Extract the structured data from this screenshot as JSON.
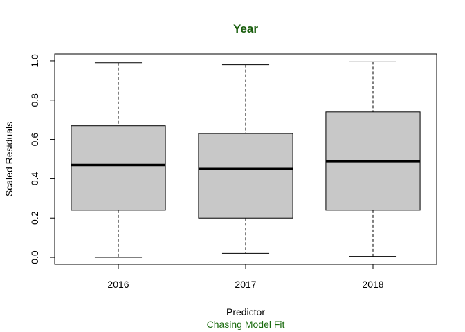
{
  "colors": {
    "title": "#1a5e0e",
    "subtitle": "#1a6b0e",
    "box_fill": "#c8c8c8",
    "stroke": "#000000"
  },
  "chart_data": {
    "type": "boxplot",
    "title": "Year",
    "xlabel": "Predictor",
    "ylabel": "Scaled Residuals",
    "subtitle": "Chasing Model Fit",
    "categories": [
      "2016",
      "2017",
      "2018"
    ],
    "boxes": [
      {
        "category": "2016",
        "min": 0.0,
        "q1": 0.24,
        "median": 0.47,
        "q3": 0.67,
        "max": 0.99
      },
      {
        "category": "2017",
        "min": 0.02,
        "q1": 0.2,
        "median": 0.45,
        "q3": 0.63,
        "max": 0.98
      },
      {
        "category": "2018",
        "min": 0.005,
        "q1": 0.24,
        "median": 0.49,
        "q3": 0.74,
        "max": 0.995
      }
    ],
    "ylim": [
      -0.035,
      1.035
    ],
    "yticks": [
      0.0,
      0.2,
      0.4,
      0.6,
      0.8,
      1.0
    ],
    "ytick_labels": [
      "0.0",
      "0.2",
      "0.4",
      "0.6",
      "0.8",
      "1.0"
    ],
    "grid": false
  }
}
